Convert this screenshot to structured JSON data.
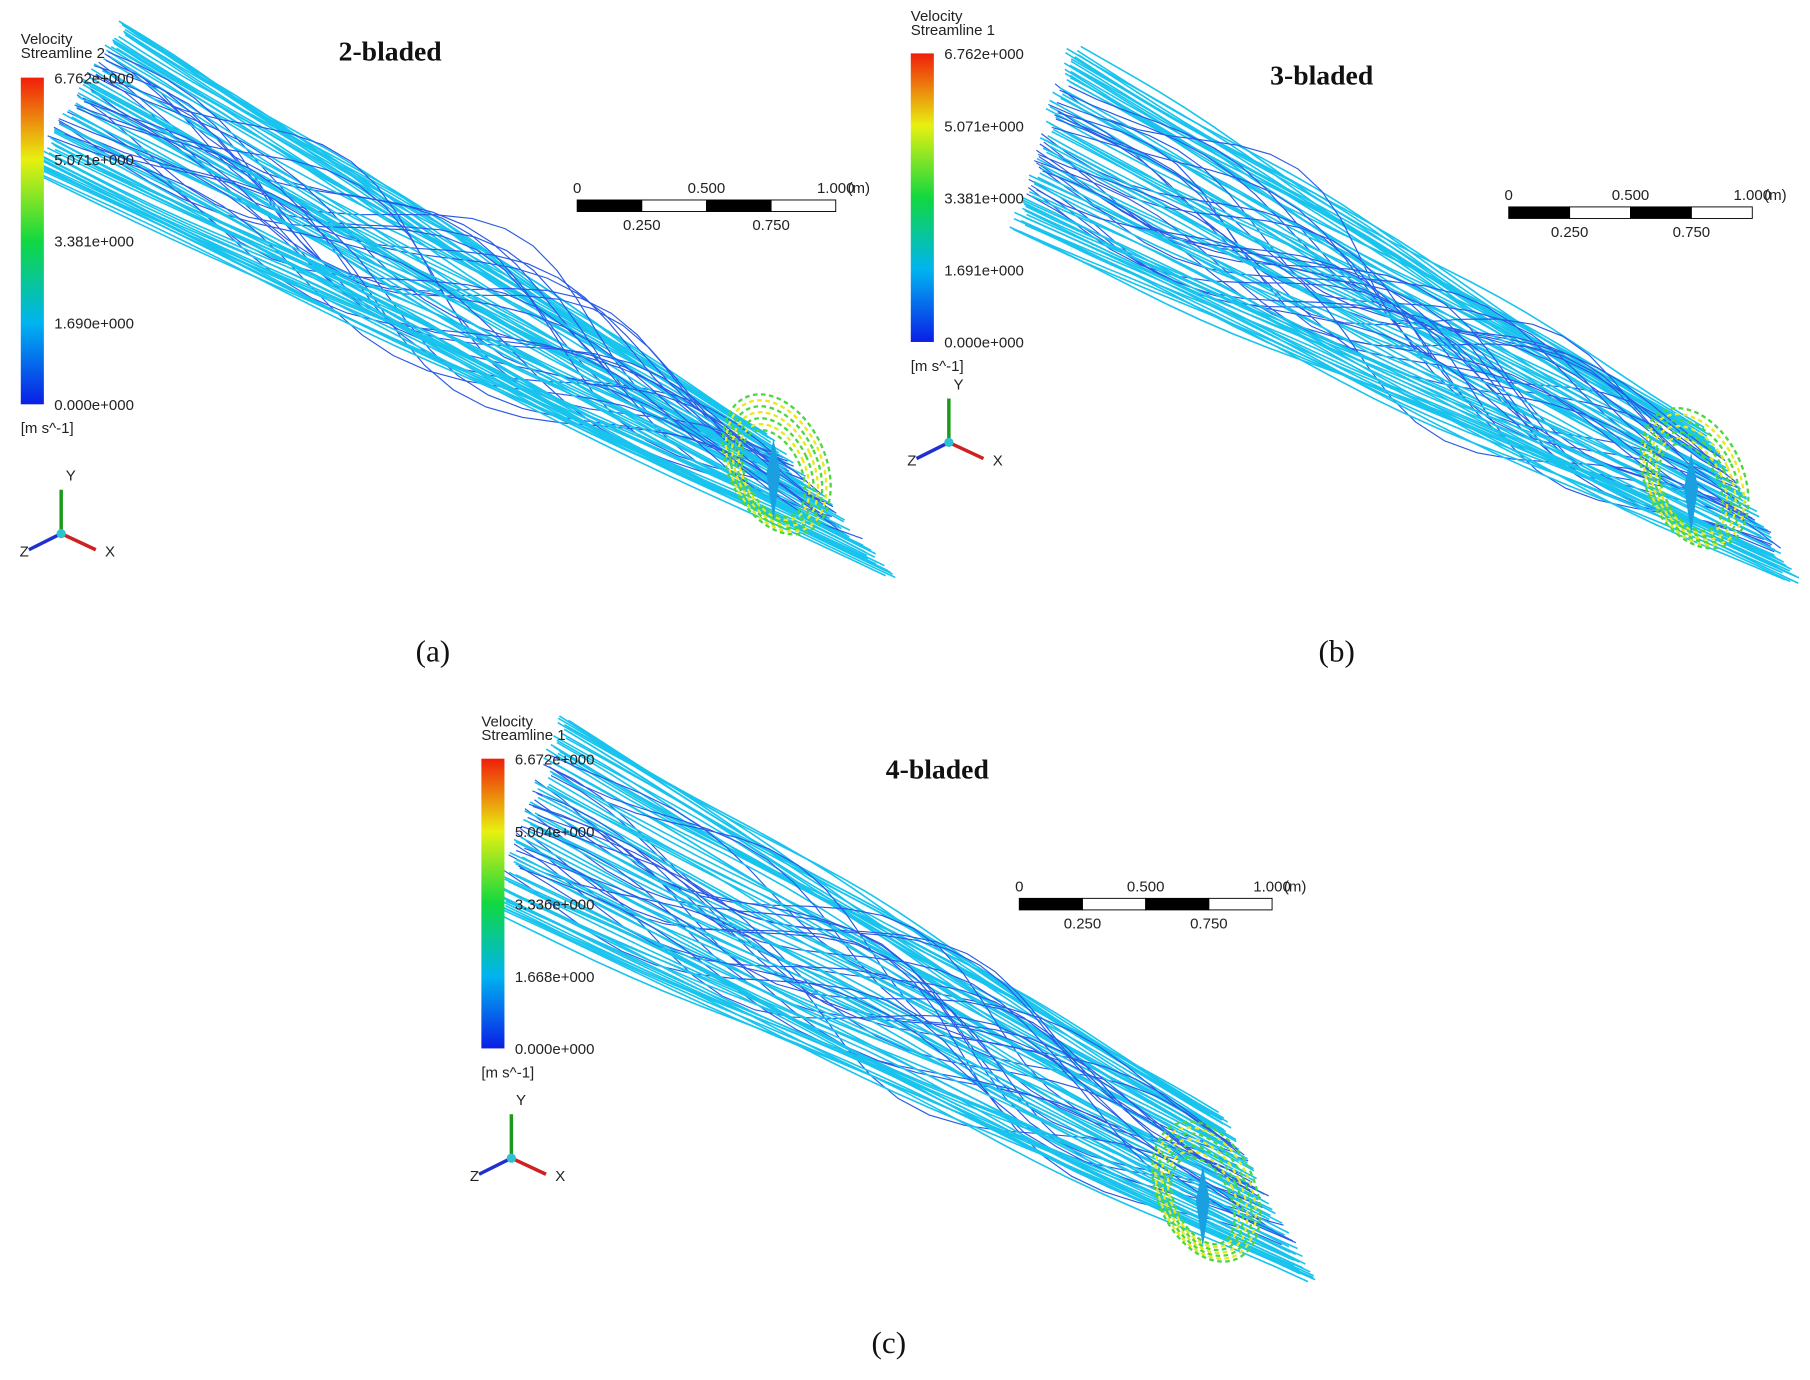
{
  "panels": [
    {
      "title": "2-bladed",
      "caption": "(a)",
      "legend": {
        "variable": "Velocity",
        "name": "Streamline 2",
        "ticks": [
          "6.762e+000",
          "5.071e+000",
          "3.381e+000",
          "1.690e+000",
          "0.000e+000"
        ],
        "unit": "[m s^-1]"
      },
      "scale": {
        "top": [
          "0",
          "0.500",
          "1.000",
          "(m)"
        ],
        "bottom": [
          "0.250",
          "0.750"
        ]
      },
      "axes": [
        "Y",
        "Z",
        "X"
      ]
    },
    {
      "title": "3-bladed",
      "caption": "(b)",
      "legend": {
        "variable": "Velocity",
        "name": "Streamline 1",
        "ticks": [
          "6.762e+000",
          "5.071e+000",
          "3.381e+000",
          "1.691e+000",
          "0.000e+000"
        ],
        "unit": "[m s^-1]"
      },
      "scale": {
        "top": [
          "0",
          "0.500",
          "1.000",
          "(m)"
        ],
        "bottom": [
          "0.250",
          "0.750"
        ]
      },
      "axes": [
        "Y",
        "Z",
        "X"
      ]
    },
    {
      "title": "4-bladed",
      "caption": "(c)",
      "legend": {
        "variable": "Velocity",
        "name": "Streamline 1",
        "ticks": [
          "6.672e+000",
          "5.004e+000",
          "3.336e+000",
          "1.668e+000",
          "0.000e+000"
        ],
        "unit": "[m s^-1]"
      },
      "scale": {
        "top": [
          "0",
          "0.500",
          "1.000",
          "(m)"
        ],
        "bottom": [
          "0.250",
          "0.750"
        ]
      },
      "axes": [
        "Y",
        "Z",
        "X"
      ]
    }
  ]
}
